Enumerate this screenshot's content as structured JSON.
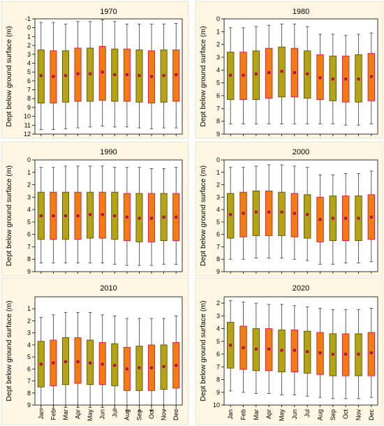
{
  "figure": {
    "background": "#ffffff",
    "panel_bg": "#fdf6e3",
    "panel_border": "#e9e2cf",
    "plot_bg": "#ffffff",
    "colors": {
      "olive_fill": "#b5a317",
      "olive_edge": "#5c5200",
      "orange_fill": "#f07d12",
      "orange_edge": "#d4194c",
      "median_dot": "#b01040",
      "whisker": "#3a3a3a"
    }
  },
  "chart_data": [
    {
      "type": "box",
      "title": "1970",
      "ylabel": "Dept below ground surface (m)",
      "yticks": [
        -1,
        0,
        1,
        2,
        3,
        4,
        5,
        6,
        7,
        8,
        9,
        10,
        11,
        12
      ],
      "ylim": [
        -1,
        12
      ],
      "categories": [
        "Jan",
        "Feb",
        "Mar",
        "Apr",
        "May",
        "Jun",
        "Jul",
        "Aug",
        "Sep",
        "Oct",
        "Nov",
        "Dec"
      ],
      "show_xticklabels": false,
      "box_colors": [
        "olive",
        "orange",
        "olive",
        "orange",
        "olive",
        "orange",
        "olive",
        "orange",
        "olive",
        "orange",
        "olive",
        "orange"
      ],
      "whisker_low": [
        -0.6,
        -0.6,
        -0.4,
        -0.7,
        -0.7,
        -0.9,
        -0.7,
        -0.4,
        -0.4,
        -0.4,
        -0.4,
        -0.5
      ],
      "q1": [
        2.5,
        2.6,
        2.6,
        2.3,
        2.3,
        2.1,
        2.4,
        2.4,
        2.5,
        2.6,
        2.5,
        2.5
      ],
      "median": [
        5.4,
        5.5,
        5.4,
        5.2,
        5.2,
        5.0,
        5.3,
        5.3,
        5.4,
        5.5,
        5.4,
        5.3
      ],
      "q3": [
        8.5,
        8.5,
        8.4,
        8.3,
        8.3,
        8.2,
        8.3,
        8.3,
        8.4,
        8.5,
        8.4,
        8.3
      ],
      "whisker_high": [
        11.5,
        11.5,
        11.4,
        11.3,
        11.2,
        11.1,
        11.2,
        11.2,
        11.3,
        11.4,
        11.3,
        11.3
      ]
    },
    {
      "type": "box",
      "title": "1980",
      "ylabel": "Dept below ground surface (m)",
      "yticks": [
        0,
        1,
        2,
        3,
        4,
        5,
        6,
        7,
        8,
        9
      ],
      "ylim": [
        0,
        9
      ],
      "categories": [
        "Jan",
        "Feb",
        "Mar",
        "Apr",
        "May",
        "Jun",
        "Jul",
        "Aug",
        "Sep",
        "Oct",
        "Nov",
        "Dec"
      ],
      "show_xticklabels": false,
      "box_colors": [
        "olive",
        "orange",
        "olive",
        "orange",
        "olive",
        "orange",
        "olive",
        "orange",
        "olive",
        "orange",
        "olive",
        "orange"
      ],
      "whisker_low": [
        0.7,
        0.7,
        0.6,
        0.5,
        0.4,
        0.4,
        0.6,
        1.2,
        1.2,
        1.3,
        1.2,
        1.1
      ],
      "q1": [
        2.6,
        2.6,
        2.5,
        2.3,
        2.2,
        2.3,
        2.5,
        2.8,
        2.9,
        2.9,
        2.8,
        2.7
      ],
      "median": [
        4.4,
        4.4,
        4.3,
        4.2,
        4.1,
        4.2,
        4.3,
        4.6,
        4.7,
        4.7,
        4.7,
        4.5
      ],
      "q3": [
        6.3,
        6.3,
        6.3,
        6.2,
        6.1,
        6.1,
        6.2,
        6.3,
        6.4,
        6.5,
        6.5,
        6.4
      ],
      "whisker_high": [
        8.2,
        8.2,
        8.2,
        8.2,
        8.2,
        8.2,
        8.2,
        8.2,
        8.2,
        8.3,
        8.3,
        8.2
      ]
    },
    {
      "type": "box",
      "title": "1990",
      "ylabel": "Dept below ground surface (m)",
      "yticks": [
        0,
        1,
        2,
        3,
        4,
        5,
        6,
        7,
        8,
        9
      ],
      "ylim": [
        0,
        9
      ],
      "categories": [
        "Jan",
        "Feb",
        "Mar",
        "Apr",
        "May",
        "Jun",
        "Jul",
        "Aug",
        "Sep",
        "Oct",
        "Nov",
        "Dec"
      ],
      "show_xticklabels": false,
      "box_colors": [
        "olive",
        "orange",
        "olive",
        "orange",
        "olive",
        "orange",
        "olive",
        "orange",
        "olive",
        "orange",
        "olive",
        "orange"
      ],
      "whisker_low": [
        0.6,
        0.6,
        0.5,
        0.5,
        0.5,
        0.5,
        0.6,
        0.6,
        0.6,
        0.7,
        0.7,
        0.6
      ],
      "q1": [
        2.6,
        2.6,
        2.6,
        2.6,
        2.6,
        2.6,
        2.6,
        2.7,
        2.7,
        2.7,
        2.7,
        2.7
      ],
      "median": [
        4.5,
        4.5,
        4.5,
        4.5,
        4.4,
        4.4,
        4.5,
        4.6,
        4.7,
        4.7,
        4.6,
        4.6
      ],
      "q3": [
        6.4,
        6.4,
        6.4,
        6.4,
        6.3,
        6.3,
        6.4,
        6.5,
        6.6,
        6.6,
        6.5,
        6.5
      ],
      "whisker_high": [
        8.3,
        8.3,
        8.3,
        8.3,
        8.3,
        8.3,
        8.4,
        8.5,
        8.5,
        8.5,
        8.4,
        8.4
      ]
    },
    {
      "type": "box",
      "title": "2000",
      "ylabel": "Dept below ground surface (m)",
      "yticks": [
        0,
        1,
        2,
        3,
        4,
        5,
        6,
        7,
        8,
        9
      ],
      "ylim": [
        0,
        9
      ],
      "categories": [
        "Jan",
        "Feb",
        "Mar",
        "Apr",
        "May",
        "Jun",
        "Jul",
        "Aug",
        "Sep",
        "Oct",
        "Nov",
        "Dec"
      ],
      "show_xticklabels": false,
      "box_colors": [
        "olive",
        "orange",
        "olive",
        "orange",
        "olive",
        "orange",
        "olive",
        "orange",
        "olive",
        "orange",
        "olive",
        "orange"
      ],
      "whisker_low": [
        0.6,
        0.6,
        0.5,
        0.4,
        0.4,
        0.5,
        0.6,
        1.2,
        1.2,
        1.1,
        1.1,
        0.9
      ],
      "q1": [
        2.7,
        2.6,
        2.5,
        2.5,
        2.6,
        2.7,
        2.8,
        3.0,
        2.9,
        2.9,
        2.9,
        2.8
      ],
      "median": [
        4.4,
        4.3,
        4.2,
        4.2,
        4.2,
        4.3,
        4.4,
        4.8,
        4.7,
        4.7,
        4.7,
        4.6
      ],
      "q3": [
        6.3,
        6.2,
        6.1,
        6.1,
        6.1,
        6.2,
        6.3,
        6.6,
        6.5,
        6.5,
        6.5,
        6.4
      ],
      "whisker_high": [
        8.0,
        8.0,
        7.9,
        7.9,
        7.9,
        8.0,
        8.1,
        8.4,
        8.4,
        8.3,
        8.3,
        8.2
      ]
    },
    {
      "type": "box",
      "title": "2010",
      "ylabel": "Dept below ground surface (m)",
      "yticks": [
        1,
        2,
        3,
        4,
        5,
        6,
        7,
        8,
        9
      ],
      "ylim": [
        0,
        9
      ],
      "categories": [
        "Jan",
        "Feb",
        "Mar",
        "Apr",
        "May",
        "Jun",
        "Jul",
        "Aug",
        "Sep",
        "Oct",
        "Nov",
        "Dec"
      ],
      "show_xticklabels": true,
      "box_colors": [
        "olive",
        "orange",
        "olive",
        "orange",
        "olive",
        "orange",
        "olive",
        "orange",
        "olive",
        "orange",
        "olive",
        "orange"
      ],
      "whisker_low": [
        1.7,
        1.5,
        1.3,
        1.3,
        1.3,
        1.5,
        1.6,
        1.8,
        1.8,
        1.8,
        1.8,
        1.6
      ],
      "q1": [
        3.7,
        3.6,
        3.4,
        3.4,
        3.6,
        3.8,
        3.9,
        4.2,
        4.1,
        4.0,
        4.0,
        3.8
      ],
      "median": [
        5.6,
        5.5,
        5.4,
        5.4,
        5.5,
        5.6,
        5.7,
        6.0,
        5.9,
        5.9,
        5.8,
        5.7
      ],
      "q3": [
        7.5,
        7.4,
        7.3,
        7.2,
        7.3,
        7.3,
        7.4,
        7.8,
        7.8,
        7.8,
        7.7,
        7.6
      ],
      "whisker_high": [
        9.3,
        9.3,
        9.2,
        9.2,
        9.2,
        9.2,
        9.3,
        9.5,
        9.5,
        9.5,
        9.4,
        9.4
      ]
    },
    {
      "type": "box",
      "title": "2020",
      "ylabel": "Dept below ground surface (m)",
      "yticks": [
        2,
        3,
        4,
        5,
        6,
        7,
        8,
        9,
        10
      ],
      "ylim": [
        1.5,
        10
      ],
      "categories": [
        "Jan",
        "Feb",
        "Mar",
        "Apr",
        "May",
        "Jun",
        "Jul",
        "Aug",
        "Sep",
        "Oct",
        "Nov",
        "Dec"
      ],
      "show_xticklabels": true,
      "box_colors": [
        "olive",
        "orange",
        "olive",
        "orange",
        "olive",
        "orange",
        "olive",
        "orange",
        "olive",
        "orange",
        "olive",
        "orange"
      ],
      "whisker_low": [
        1.8,
        1.9,
        2.0,
        2.1,
        2.1,
        2.2,
        2.3,
        2.4,
        2.5,
        2.5,
        2.5,
        2.4
      ],
      "q1": [
        3.5,
        3.8,
        4.0,
        4.0,
        4.1,
        4.1,
        4.2,
        4.3,
        4.4,
        4.4,
        4.4,
        4.3
      ],
      "median": [
        5.3,
        5.5,
        5.6,
        5.6,
        5.7,
        5.7,
        5.8,
        5.9,
        6.0,
        6.0,
        6.0,
        5.9
      ],
      "q3": [
        7.1,
        7.2,
        7.3,
        7.3,
        7.4,
        7.4,
        7.5,
        7.6,
        7.7,
        7.7,
        7.7,
        7.7
      ],
      "whisker_high": [
        8.9,
        9.0,
        9.1,
        9.1,
        9.2,
        9.2,
        9.3,
        9.4,
        9.5,
        9.5,
        9.5,
        9.4
      ]
    }
  ]
}
